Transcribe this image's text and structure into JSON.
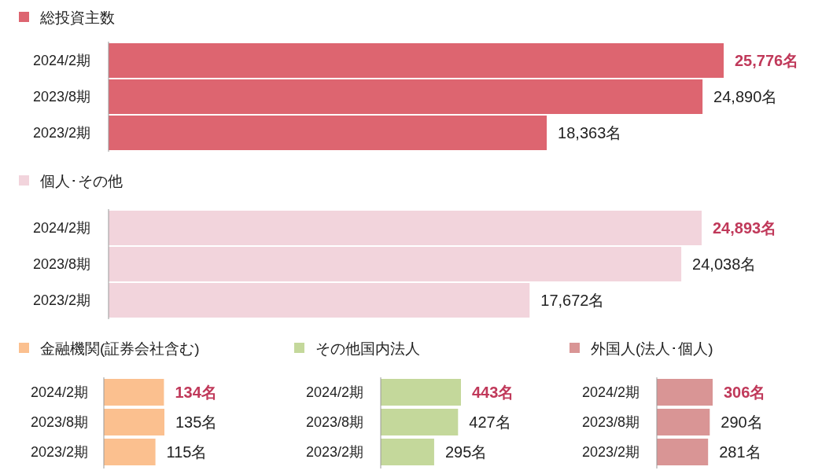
{
  "chart_data": [
    {
      "type": "bar",
      "orientation": "horizontal",
      "categories": [
        "2024/2期",
        "2023/8期",
        "2023/2期"
      ],
      "tick_labels": "y",
      "legend": "top left",
      "series": [
        {
          "name": "総投資主数",
          "color": "#dd6570",
          "values": [
            25776,
            24890,
            18363
          ],
          "value_labels": [
            "25,776名",
            "24,890名",
            "18,363名"
          ]
        }
      ]
    },
    {
      "type": "bar",
      "orientation": "horizontal",
      "categories": [
        "2024/2期",
        "2023/8期",
        "2023/2期"
      ],
      "tick_labels": "y",
      "legend": "top left",
      "series": [
        {
          "name": "個人･その他",
          "color": "#f2d4dc",
          "values": [
            24893,
            24038,
            17672
          ],
          "value_labels": [
            "24,893名",
            "24,038名",
            "17,672名"
          ]
        }
      ]
    },
    {
      "type": "bar",
      "orientation": "horizontal",
      "categories": [
        "2024/2期",
        "2023/8期",
        "2023/2期"
      ],
      "tick_labels": "y",
      "legend": "top left",
      "series": [
        {
          "name": "金融機関(証券会社含む)",
          "color": "#fbc08f",
          "values": [
            134,
            135,
            115
          ],
          "value_labels": [
            "134名",
            "135名",
            "115名"
          ]
        }
      ]
    },
    {
      "type": "bar",
      "orientation": "horizontal",
      "categories": [
        "2024/2期",
        "2023/8期",
        "2023/2期"
      ],
      "tick_labels": "y",
      "legend": "top left",
      "series": [
        {
          "name": "その他国内法人",
          "color": "#c4d89b",
          "values": [
            443,
            427,
            295
          ],
          "value_labels": [
            "443名",
            "427名",
            "295名"
          ]
        }
      ]
    },
    {
      "type": "bar",
      "orientation": "horizontal",
      "categories": [
        "2024/2期",
        "2023/8期",
        "2023/2期"
      ],
      "tick_labels": "y",
      "legend": "top left",
      "series": [
        {
          "name": "外国人(法人･個人)",
          "color": "#d99595",
          "values": [
            306,
            290,
            281
          ],
          "value_labels": [
            "306名",
            "290名",
            "281名"
          ]
        }
      ]
    }
  ]
}
